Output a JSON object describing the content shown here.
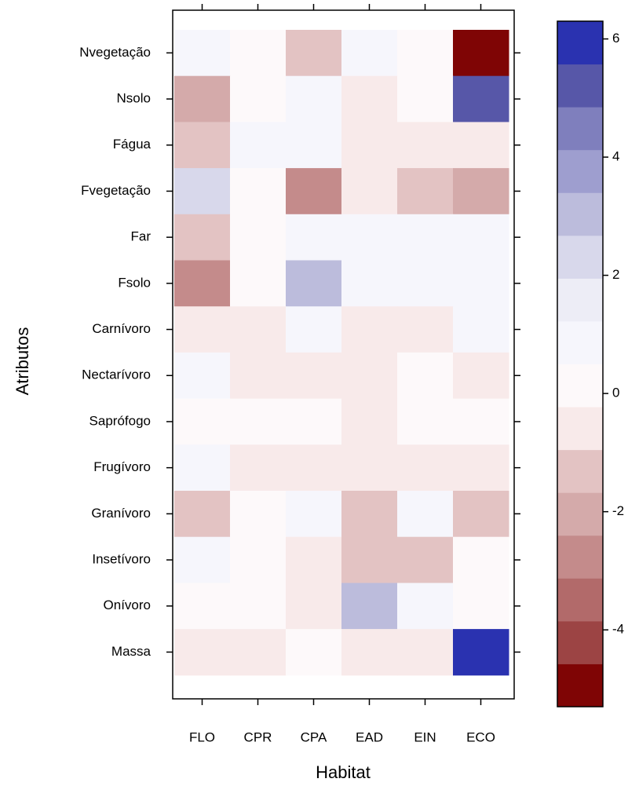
{
  "chart_data": {
    "type": "heatmap",
    "x_label": "Habitat",
    "y_label": "Atributos",
    "x_categories": [
      "FLO",
      "CPR",
      "CPA",
      "EAD",
      "EIN",
      "ECO"
    ],
    "y_categories": [
      "Nvegetação",
      "Nsolo",
      "Fágua",
      "Fvegetação",
      "Far",
      "Fsolo",
      "Carnívoro",
      "Nectarívoro",
      "Saprófogo",
      "Frugívoro",
      "Granívoro",
      "Insetívoro",
      "Onívoro",
      "Massa"
    ],
    "values": [
      [
        1.0,
        0,
        -1.2,
        0.7,
        0,
        -5
      ],
      [
        -2,
        0,
        1.0,
        -0.5,
        0,
        5.2
      ],
      [
        -1.2,
        1.0,
        0.7,
        -0.5,
        -0.5,
        -0.5
      ],
      [
        2.2,
        0,
        -3,
        -0.5,
        -1.2,
        -2
      ],
      [
        -1.2,
        0,
        1.0,
        0.7,
        0.7,
        0.7
      ],
      [
        -3,
        0,
        3,
        0.7,
        1.0,
        0.7
      ],
      [
        -0.5,
        -0.5,
        0.7,
        -0.5,
        -0.5,
        1.0
      ],
      [
        0.7,
        -0.5,
        -0.5,
        -0.5,
        0,
        -0.5
      ],
      [
        0,
        0,
        0,
        -0.5,
        0,
        0
      ],
      [
        1.0,
        -0.5,
        -0.5,
        -0.5,
        -0.5,
        -0.5
      ],
      [
        -1.2,
        0,
        1.0,
        -1.2,
        1.0,
        -1.2
      ],
      [
        0.7,
        0,
        -0.5,
        -1.2,
        -1.2,
        0
      ],
      [
        0,
        0,
        -0.5,
        3,
        0.7,
        0
      ],
      [
        -0.5,
        -0.5,
        0,
        -0.5,
        -0.5,
        6
      ]
    ],
    "colorbar": {
      "lim": [
        -5.3,
        6.3
      ],
      "ticks": [
        -4,
        -2,
        0,
        2,
        4,
        6
      ],
      "colors": [
        "#7f0505",
        "#9c4444",
        "#b26a6a",
        "#c48b8b",
        "#d4aaaa",
        "#e3c3c3",
        "#f8eaea",
        "#fdf9fa",
        "#f6f6fc",
        "#ededf6",
        "#d8d8eb",
        "#bcbcdc",
        "#9e9ecf",
        "#7f7fbd",
        "#5757a8",
        "#2a32b0"
      ]
    }
  }
}
